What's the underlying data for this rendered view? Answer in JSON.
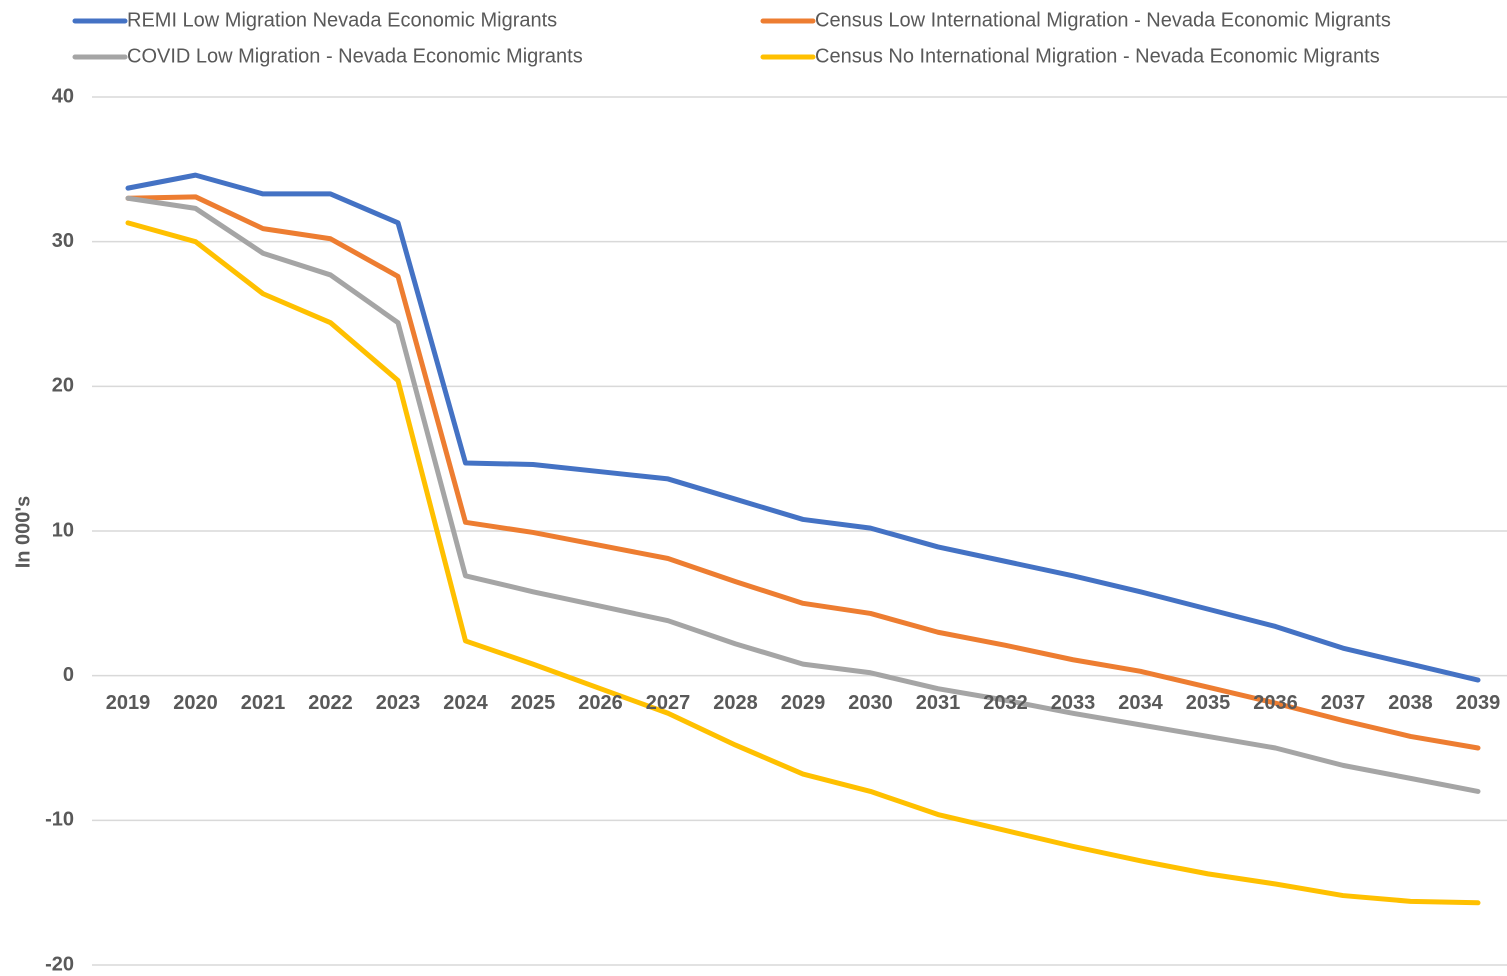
{
  "chart_data": {
    "type": "line",
    "y_label": "In 000's",
    "categories": [
      "2019",
      "2020",
      "2021",
      "2022",
      "2023",
      "2024",
      "2025",
      "2026",
      "2027",
      "2028",
      "2029",
      "2030",
      "2031",
      "2032",
      "2033",
      "2034",
      "2035",
      "2036",
      "2037",
      "2038",
      "2039"
    ],
    "series": [
      {
        "name": "REMI Low Migration Nevada Economic Migrants",
        "color": "#4472c4",
        "values": [
          33.7,
          34.6,
          33.3,
          33.3,
          31.3,
          14.7,
          14.6,
          14.1,
          13.6,
          12.2,
          10.8,
          10.2,
          8.9,
          7.9,
          6.9,
          5.8,
          4.6,
          3.4,
          1.9,
          0.8,
          -0.3
        ]
      },
      {
        "name": "Census Low International Migration - Nevada Economic Migrants",
        "color": "#ed7d31",
        "values": [
          33.0,
          33.1,
          30.9,
          30.2,
          27.6,
          10.6,
          9.9,
          9.0,
          8.1,
          6.5,
          5.0,
          4.3,
          3.0,
          2.1,
          1.1,
          0.3,
          -0.8,
          -1.9,
          -3.1,
          -4.2,
          -5.0
        ]
      },
      {
        "name": "COVID Low Migration -  Nevada Economic Migrants",
        "color": "#a5a5a5",
        "values": [
          33.0,
          32.3,
          29.2,
          27.7,
          24.4,
          6.9,
          5.8,
          4.8,
          3.8,
          2.2,
          0.8,
          0.2,
          -0.9,
          -1.7,
          -2.6,
          -3.4,
          -4.2,
          -5.0,
          -6.2,
          -7.1,
          -8.0
        ]
      },
      {
        "name": "Census No International Migration - Nevada Economic Migrants",
        "color": "#ffc000",
        "values": [
          31.3,
          30.0,
          26.4,
          24.4,
          20.4,
          2.4,
          0.8,
          -0.9,
          -2.6,
          -4.8,
          -6.8,
          -8.0,
          -9.6,
          -10.7,
          -11.8,
          -12.8,
          -13.7,
          -14.4,
          -15.2,
          -15.6,
          -15.7
        ]
      }
    ],
    "ylim": [
      -20,
      40
    ],
    "yticks": [
      -20,
      -10,
      0,
      10,
      20,
      30,
      40
    ],
    "grid": true
  }
}
